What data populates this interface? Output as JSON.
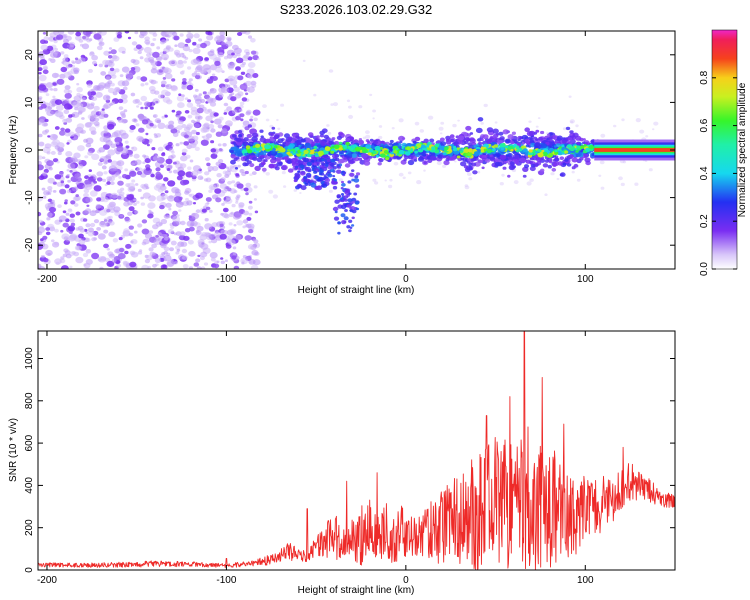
{
  "title": "S233.2026.103.02.29.G32",
  "colors": {
    "snr_line": "#ee2a28",
    "frame": "#000000",
    "scatter_dense": "#6a1cf0",
    "scatter_light": "#d9c8fa"
  },
  "chart_data": [
    {
      "type": "heatmap",
      "name": "spectrogram",
      "xlabel": "Height of straight line (km)",
      "ylabel": "Frequency (Hz)",
      "xlim": [
        -205,
        150
      ],
      "ylim": [
        -25,
        25
      ],
      "xticks": [
        -200,
        -100,
        0,
        100
      ],
      "yticks": [
        -20,
        -10,
        0,
        10,
        20
      ],
      "colorbar": {
        "label": "Normalized spectral amplitude",
        "range": [
          0.0,
          1.0
        ],
        "ticks": [
          "0.0",
          "0.2",
          "0.4",
          "0.6",
          "0.8"
        ],
        "colormap": "rainbow (white-violet-blue-cyan-green-yellow-red-magenta)"
      },
      "regions": [
        {
          "description": "broadband noise",
          "x": [
            -205,
            -85
          ],
          "y": [
            -25,
            25
          ],
          "amplitude": 0.05
        },
        {
          "description": "main ridge",
          "x": [
            -95,
            150
          ],
          "y": [
            -2,
            2
          ],
          "amplitude": 0.6
        },
        {
          "description": "strong line",
          "x": [
            105,
            150
          ],
          "y": [
            -0.5,
            0.5
          ],
          "amplitude": 0.95
        },
        {
          "description": "arm",
          "x": [
            -60,
            -25
          ],
          "y": [
            -18,
            5
          ],
          "amplitude": 0.3
        }
      ]
    },
    {
      "type": "line",
      "name": "snr",
      "xlabel": "Height of straight line (km)",
      "ylabel": "SNR (10 * v/v)",
      "xlim": [
        -205,
        150
      ],
      "ylim": [
        0,
        1130
      ],
      "xticks": [
        -200,
        -100,
        0,
        100
      ],
      "yticks": [
        0,
        200,
        400,
        600,
        800,
        1000
      ],
      "series": [
        {
          "name": "SNR",
          "x": [
            -205,
            -180,
            -160,
            -140,
            -120,
            -100,
            -85,
            -75,
            -65,
            -58,
            -50,
            -45,
            -40,
            -35,
            -30,
            -25,
            -20,
            -15,
            -10,
            -5,
            0,
            5,
            10,
            15,
            20,
            25,
            30,
            35,
            40,
            45,
            50,
            55,
            60,
            65,
            70,
            75,
            80,
            85,
            90,
            95,
            100,
            105,
            110,
            115,
            120,
            125,
            130,
            135,
            140,
            145,
            150
          ],
          "baseline": [
            25,
            22,
            25,
            30,
            28,
            20,
            30,
            50,
            90,
            60,
            100,
            140,
            160,
            120,
            150,
            170,
            200,
            150,
            180,
            190,
            170,
            160,
            170,
            190,
            200,
            220,
            240,
            260,
            270,
            280,
            300,
            300,
            310,
            320,
            320,
            310,
            300,
            290,
            280,
            270,
            280,
            300,
            310,
            330,
            390,
            420,
            400,
            380,
            350,
            330,
            320
          ],
          "amplitude": [
            10,
            10,
            12,
            15,
            12,
            10,
            15,
            25,
            45,
            25,
            50,
            90,
            120,
            70,
            110,
            160,
            140,
            100,
            150,
            150,
            110,
            110,
            130,
            140,
            190,
            220,
            240,
            260,
            280,
            300,
            340,
            340,
            340,
            360,
            360,
            340,
            300,
            260,
            220,
            200,
            170,
            150,
            140,
            110,
            100,
            90,
            70,
            60,
            50,
            40,
            40
          ],
          "peaks": [
            [
              -100,
              55
            ],
            [
              -55,
              290
            ],
            [
              -33,
              420
            ],
            [
              -16,
              460
            ],
            [
              45,
              730
            ],
            [
              58,
              820
            ],
            [
              66,
              1130
            ],
            [
              76,
              910
            ],
            [
              88,
              690
            ],
            [
              121,
              580
            ]
          ]
        }
      ]
    }
  ]
}
